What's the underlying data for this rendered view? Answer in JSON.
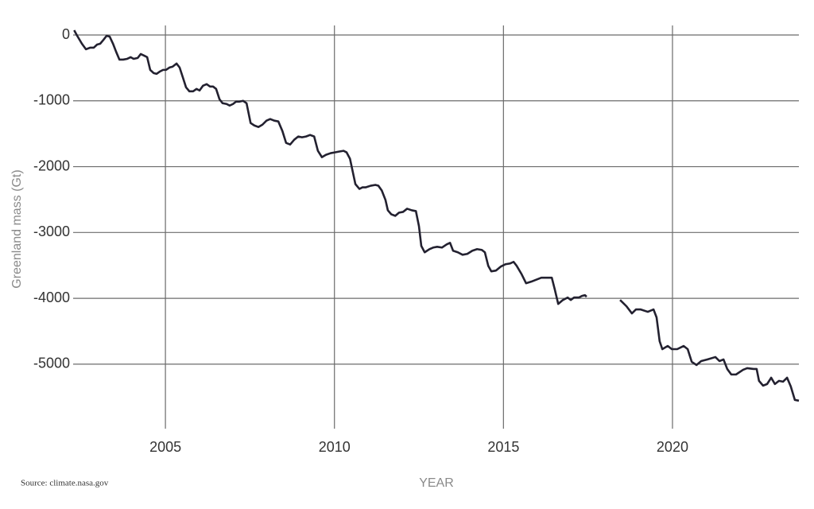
{
  "chart_data": {
    "type": "line",
    "ylabel": "Greenland mass (Gt)",
    "xlabel": "YEAR",
    "source": "Source: climate.nasa.gov",
    "color": "#232130",
    "grid": true,
    "xlim": [
      2002.27,
      2023.74
    ],
    "xticks": [
      2005,
      2010,
      2015,
      2020
    ],
    "ylim": [
      -5980,
      145
    ],
    "yticks": [
      0,
      -1000,
      -2000,
      -3000,
      -4000,
      -5000
    ],
    "x": [
      2002.3,
      2002.39,
      2002.53,
      2002.65,
      2002.77,
      2002.88,
      2002.98,
      2003.07,
      2003.17,
      2003.26,
      2003.35,
      2003.45,
      2003.54,
      2003.64,
      2003.75,
      2003.87,
      2003.97,
      2004.06,
      2004.18,
      2004.27,
      2004.37,
      2004.46,
      2004.55,
      2004.65,
      2004.74,
      2004.84,
      2004.93,
      2005.02,
      2005.12,
      2005.21,
      2005.33,
      2005.42,
      2005.52,
      2005.61,
      2005.71,
      2005.82,
      2005.92,
      2006.01,
      2006.11,
      2006.22,
      2006.32,
      2006.41,
      2006.5,
      2006.6,
      2006.69,
      2006.81,
      2006.9,
      2007.0,
      2007.09,
      2007.19,
      2007.3,
      2007.4,
      2007.52,
      2007.63,
      2007.75,
      2007.87,
      2007.99,
      2008.1,
      2008.22,
      2008.34,
      2008.46,
      2008.57,
      2008.69,
      2008.81,
      2008.93,
      2009.04,
      2009.16,
      2009.28,
      2009.4,
      2009.51,
      2009.63,
      2009.75,
      2009.89,
      2010.01,
      2010.13,
      2010.27,
      2010.36,
      2010.46,
      2010.62,
      2010.74,
      2010.83,
      2010.93,
      2011.07,
      2011.21,
      2011.3,
      2011.4,
      2011.51,
      2011.58,
      2011.68,
      2011.8,
      2011.91,
      2012.03,
      2012.15,
      2012.29,
      2012.41,
      2012.5,
      2012.57,
      2012.67,
      2012.81,
      2012.92,
      2013.04,
      2013.18,
      2013.32,
      2013.42,
      2013.51,
      2013.65,
      2013.79,
      2013.93,
      2014.08,
      2014.22,
      2014.36,
      2014.45,
      2014.55,
      2014.64,
      2014.78,
      2014.92,
      2015.06,
      2015.2,
      2015.3,
      2015.39,
      2015.53,
      2015.67,
      2015.82,
      2016.0,
      2016.12,
      2016.24,
      2016.33,
      2016.43,
      2016.52,
      2016.62,
      2016.76,
      2016.9,
      2016.99,
      2017.09,
      2017.23,
      2017.32,
      2017.41,
      2017.46,
      2017.9,
      2018.45,
      2018.64,
      2018.8,
      2018.92,
      2019.06,
      2019.27,
      2019.44,
      2019.53,
      2019.62,
      2019.7,
      2019.86,
      2019.98,
      2020.14,
      2020.33,
      2020.45,
      2020.57,
      2020.71,
      2020.85,
      2021.04,
      2021.27,
      2021.39,
      2021.51,
      2021.62,
      2021.74,
      2021.88,
      2022.09,
      2022.21,
      2022.4,
      2022.49,
      2022.56,
      2022.68,
      2022.8,
      2022.92,
      2023.03,
      2023.15,
      2023.27,
      2023.39,
      2023.5,
      2023.62,
      2023.74
    ],
    "values": [
      72,
      -12,
      -133,
      -217,
      -193,
      -193,
      -145,
      -133,
      -72,
      -12,
      -24,
      -133,
      -253,
      -374,
      -374,
      -362,
      -337,
      -362,
      -349,
      -289,
      -313,
      -337,
      -530,
      -578,
      -590,
      -554,
      -530,
      -530,
      -494,
      -482,
      -434,
      -494,
      -651,
      -795,
      -856,
      -856,
      -819,
      -843,
      -771,
      -747,
      -783,
      -783,
      -819,
      -976,
      -1036,
      -1048,
      -1072,
      -1048,
      -1012,
      -1012,
      -1000,
      -1036,
      -1337,
      -1374,
      -1398,
      -1362,
      -1301,
      -1277,
      -1301,
      -1313,
      -1458,
      -1639,
      -1663,
      -1591,
      -1542,
      -1554,
      -1542,
      -1518,
      -1542,
      -1759,
      -1856,
      -1820,
      -1795,
      -1783,
      -1771,
      -1759,
      -1783,
      -1880,
      -2265,
      -2338,
      -2314,
      -2314,
      -2290,
      -2277,
      -2290,
      -2362,
      -2506,
      -2663,
      -2723,
      -2747,
      -2699,
      -2687,
      -2639,
      -2663,
      -2675,
      -2904,
      -3205,
      -3301,
      -3253,
      -3229,
      -3217,
      -3229,
      -3181,
      -3157,
      -3277,
      -3301,
      -3338,
      -3325,
      -3277,
      -3253,
      -3265,
      -3301,
      -3506,
      -3590,
      -3578,
      -3518,
      -3482,
      -3470,
      -3446,
      -3506,
      -3627,
      -3771,
      -3747,
      -3711,
      -3687,
      -3687,
      -3687,
      -3687,
      -3868,
      -4085,
      -4025,
      -3988,
      -4025,
      -3988,
      -3988,
      -3964,
      -3952,
      -3976,
      null,
      -4025,
      -4121,
      -4229,
      -4169,
      -4169,
      -4205,
      -4169,
      -4290,
      -4651,
      -4772,
      -4724,
      -4772,
      -4772,
      -4724,
      -4772,
      -4965,
      -5013,
      -4953,
      -4928,
      -4892,
      -4953,
      -4928,
      -5073,
      -5157,
      -5157,
      -5085,
      -5061,
      -5073,
      -5073,
      -5254,
      -5326,
      -5302,
      -5206,
      -5302,
      -5254,
      -5266,
      -5206,
      -5338,
      -5543,
      -5555
    ]
  }
}
